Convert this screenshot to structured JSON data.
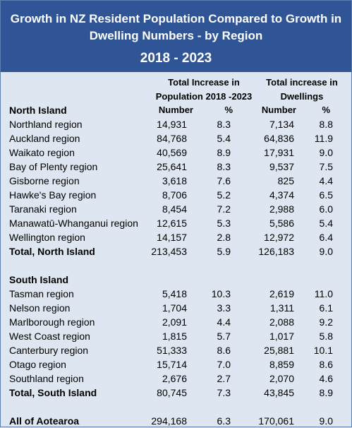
{
  "title": {
    "line1": "Growth in NZ Resident Population Compared to Growth in",
    "line2": "Dwelling Numbers - by Region",
    "period": "2018 - 2023"
  },
  "columns": {
    "population_group_line1": "Total Increase in",
    "population_group_line2": "Population 2018 -2023",
    "dwellings_group_line1": "Total increase in",
    "dwellings_group_line2": "Dwellings",
    "number": "Number",
    "percent": "%"
  },
  "north_island": {
    "heading": "North Island",
    "rows": [
      {
        "region": "Northland region",
        "pop": "14,931",
        "pop_pct": "8.3",
        "dw": "7,134",
        "dw_pct": "8.8"
      },
      {
        "region": "Auckland region",
        "pop": "84,768",
        "pop_pct": "5.4",
        "dw": "64,836",
        "dw_pct": "11.9"
      },
      {
        "region": "Waikato region",
        "pop": "40,569",
        "pop_pct": "8.9",
        "dw": "17,931",
        "dw_pct": "9.0"
      },
      {
        "region": "Bay of Plenty region",
        "pop": "25,641",
        "pop_pct": "8.3",
        "dw": "9,537",
        "dw_pct": "7.5"
      },
      {
        "region": "Gisborne region",
        "pop": "3,618",
        "pop_pct": "7.6",
        "dw": "825",
        "dw_pct": "4.4"
      },
      {
        "region": "Hawke's Bay region",
        "pop": "8,706",
        "pop_pct": "5.2",
        "dw": "4,374",
        "dw_pct": "6.5"
      },
      {
        "region": "Taranaki region",
        "pop": "8,454",
        "pop_pct": "7.2",
        "dw": "2,988",
        "dw_pct": "6.0"
      },
      {
        "region": "Manawatū-Whanganui region",
        "pop": "12,615",
        "pop_pct": "5.3",
        "dw": "5,586",
        "dw_pct": "5.4"
      },
      {
        "region": "Wellington region",
        "pop": "14,157",
        "pop_pct": "2.8",
        "dw": "12,972",
        "dw_pct": "6.4"
      }
    ],
    "total": {
      "region": "Total, North Island",
      "pop": "213,453",
      "pop_pct": "5.9",
      "dw": "126,183",
      "dw_pct": "9.0"
    }
  },
  "south_island": {
    "heading": "South Island",
    "rows": [
      {
        "region": "Tasman region",
        "pop": "5,418",
        "pop_pct": "10.3",
        "dw": "2,619",
        "dw_pct": "11.0"
      },
      {
        "region": "Nelson region",
        "pop": "1,704",
        "pop_pct": "3.3",
        "dw": "1,311",
        "dw_pct": "6.1"
      },
      {
        "region": "Marlborough region",
        "pop": "2,091",
        "pop_pct": "4.4",
        "dw": "2,088",
        "dw_pct": "9.2"
      },
      {
        "region": "West Coast region",
        "pop": "1,815",
        "pop_pct": "5.7",
        "dw": "1,017",
        "dw_pct": "5.8"
      },
      {
        "region": "Canterbury region",
        "pop": "51,333",
        "pop_pct": "8.6",
        "dw": "25,881",
        "dw_pct": "10.1"
      },
      {
        "region": "Otago region",
        "pop": "15,714",
        "pop_pct": "7.0",
        "dw": "8,859",
        "dw_pct": "8.6"
      },
      {
        "region": "Southland region",
        "pop": "2,676",
        "pop_pct": "2.7",
        "dw": "2,070",
        "dw_pct": "4.6"
      }
    ],
    "total": {
      "region": "Total, South Island",
      "pop": "80,745",
      "pop_pct": "7.3",
      "dw": "43,845",
      "dw_pct": "8.9"
    }
  },
  "all": {
    "region": "All of Aotearoa",
    "pop": "294,168",
    "pop_pct": "6.3",
    "dw": "170,061",
    "dw_pct": "9.0"
  },
  "colors": {
    "header_bg": "#2f5597",
    "body_bg": "#dde6f1",
    "header_text": "#ffffff"
  }
}
